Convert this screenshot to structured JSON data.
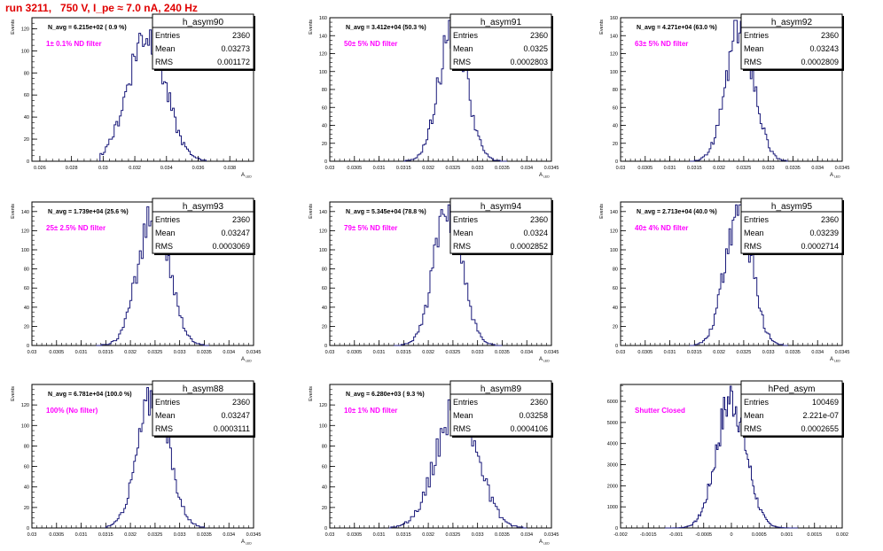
{
  "title": "run 3211,   750 V, I_pe ≈ 7.0 nA, 240 Hz",
  "colors": {
    "histogram": "#1a1a7a",
    "annotation": "#ff00ff",
    "title": "#e00000"
  },
  "stats_labels": {
    "entries": "Entries",
    "mean": "Mean",
    "rms": "RMS"
  },
  "chart_data": [
    {
      "type": "histogram",
      "name": "h_asym90",
      "ylabel": "Events",
      "xlabel": "A_LED",
      "navg": "N_avg = 6.215e+02 ( 0.9 %)",
      "annotation": "1± 0.1% ND filter",
      "stats": {
        "entries": "2360",
        "mean": "0.03273",
        "rms": "0.001172"
      },
      "xlim": [
        0.0255,
        0.0395
      ],
      "ylim": [
        0,
        130
      ],
      "xticks": [
        "0.026",
        "0.028",
        "0.03",
        "0.032",
        "0.034",
        "0.036",
        "0.038"
      ],
      "xtick_values": [
        0.026,
        0.028,
        0.03,
        0.032,
        0.034,
        0.036,
        0.038
      ],
      "yticks": [
        0,
        20,
        40,
        60,
        80,
        100,
        120
      ],
      "mean": 0.03273,
      "sigma": 0.001172,
      "peak": 118,
      "range": [
        0.0298,
        0.0365
      ],
      "nbins": 60,
      "seed": 90
    },
    {
      "type": "histogram",
      "name": "h_asym91",
      "ylabel": "Events",
      "xlabel": "A_LED",
      "navg": "N_avg = 3.412e+04 (50.3 %)",
      "annotation": "50± 5% ND filter",
      "stats": {
        "entries": "2360",
        "mean": "0.0325",
        "rms": "0.0002803"
      },
      "xlim": [
        0.03,
        0.0345
      ],
      "ylim": [
        0,
        160
      ],
      "xticks": [
        "0.03",
        "0.0305",
        "0.031",
        "0.0315",
        "0.032",
        "0.0325",
        "0.033",
        "0.0335",
        "0.034",
        "0.0345"
      ],
      "xtick_values": [
        0.03,
        0.0305,
        0.031,
        0.0315,
        0.032,
        0.0325,
        0.033,
        0.0335,
        0.034,
        0.0345
      ],
      "yticks": [
        0,
        20,
        40,
        60,
        80,
        100,
        120,
        140,
        160
      ],
      "mean": 0.0325,
      "sigma": 0.00028,
      "peak": 152,
      "range": [
        0.0315,
        0.0336
      ],
      "nbins": 60,
      "seed": 91
    },
    {
      "type": "histogram",
      "name": "h_asym92",
      "ylabel": "Events",
      "xlabel": "A_LED",
      "navg": "N_avg = 4.271e+04 (63.0 %)",
      "annotation": "63± 5% ND filter",
      "stats": {
        "entries": "2360",
        "mean": "0.03243",
        "rms": "0.0002809"
      },
      "xlim": [
        0.03,
        0.0345
      ],
      "ylim": [
        0,
        160
      ],
      "xticks": [
        "0.03",
        "0.0305",
        "0.031",
        "0.0315",
        "0.032",
        "0.0325",
        "0.033",
        "0.0335",
        "0.034",
        "0.0345"
      ],
      "xtick_values": [
        0.03,
        0.0305,
        0.031,
        0.0315,
        0.032,
        0.0325,
        0.033,
        0.0335,
        0.034,
        0.0345
      ],
      "yticks": [
        0,
        20,
        40,
        60,
        80,
        100,
        120,
        140,
        160
      ],
      "mean": 0.03243,
      "sigma": 0.00028,
      "peak": 150,
      "range": [
        0.0314,
        0.0334
      ],
      "nbins": 60,
      "seed": 92
    },
    {
      "type": "histogram",
      "name": "h_asym93",
      "ylabel": "Events",
      "xlabel": "A_LED",
      "navg": "N_avg = 1.739e+04 (25.6 %)",
      "annotation": "25± 2.5% ND filter",
      "stats": {
        "entries": "2360",
        "mean": "0.03247",
        "rms": "0.0003069"
      },
      "xlim": [
        0.03,
        0.0345
      ],
      "ylim": [
        0,
        150
      ],
      "xticks": [
        "0.03",
        "0.0305",
        "0.031",
        "0.0315",
        "0.032",
        "0.0325",
        "0.033",
        "0.0335",
        "0.034",
        "0.0345"
      ],
      "xtick_values": [
        0.03,
        0.0305,
        0.031,
        0.0315,
        0.032,
        0.0325,
        0.033,
        0.0335,
        0.034,
        0.0345
      ],
      "yticks": [
        0,
        20,
        40,
        60,
        80,
        100,
        120,
        140
      ],
      "mean": 0.03247,
      "sigma": 0.000307,
      "peak": 145,
      "range": [
        0.0313,
        0.0336
      ],
      "nbins": 60,
      "seed": 93
    },
    {
      "type": "histogram",
      "name": "h_asym94",
      "ylabel": "Events",
      "xlabel": "A_LED",
      "navg": "N_avg = 5.345e+04 (78.8 %)",
      "annotation": "79± 5% ND filter",
      "stats": {
        "entries": "2360",
        "mean": "0.0324",
        "rms": "0.0002852"
      },
      "xlim": [
        0.03,
        0.0345
      ],
      "ylim": [
        0,
        150
      ],
      "xticks": [
        "0.03",
        "0.0305",
        "0.031",
        "0.0315",
        "0.032",
        "0.0325",
        "0.033",
        "0.0335",
        "0.034",
        "0.0345"
      ],
      "xtick_values": [
        0.03,
        0.0305,
        0.031,
        0.0315,
        0.032,
        0.0325,
        0.033,
        0.0335,
        0.034,
        0.0345
      ],
      "yticks": [
        0,
        20,
        40,
        60,
        80,
        100,
        120,
        140
      ],
      "mean": 0.0324,
      "sigma": 0.000285,
      "peak": 142,
      "range": [
        0.0313,
        0.0335
      ],
      "nbins": 60,
      "seed": 94
    },
    {
      "type": "histogram",
      "name": "h_asym95",
      "ylabel": "Events",
      "xlabel": "A_LED",
      "navg": "N_avg = 2.713e+04 (40.0 %)",
      "annotation": "40± 4% ND filter",
      "stats": {
        "entries": "2360",
        "mean": "0.03239",
        "rms": "0.0002714"
      },
      "xlim": [
        0.03,
        0.0345
      ],
      "ylim": [
        0,
        150
      ],
      "xticks": [
        "0.03",
        "0.0305",
        "0.031",
        "0.0315",
        "0.032",
        "0.0325",
        "0.033",
        "0.0335",
        "0.034",
        "0.0345"
      ],
      "xtick_values": [
        0.03,
        0.0305,
        0.031,
        0.0315,
        0.032,
        0.0325,
        0.033,
        0.0335,
        0.034,
        0.0345
      ],
      "yticks": [
        0,
        20,
        40,
        60,
        80,
        100,
        120,
        140
      ],
      "mean": 0.03239,
      "sigma": 0.00027,
      "peak": 146,
      "range": [
        0.0314,
        0.0334
      ],
      "nbins": 60,
      "seed": 95
    },
    {
      "type": "histogram",
      "name": "h_asym88",
      "ylabel": "Events",
      "xlabel": "A_LED",
      "navg": "N_avg = 6.781e+04 (100.0 %)",
      "annotation": "100% (No filter)",
      "stats": {
        "entries": "2360",
        "mean": "0.03247",
        "rms": "0.0003111"
      },
      "xlim": [
        0.03,
        0.0345
      ],
      "ylim": [
        0,
        140
      ],
      "xticks": [
        "0.03",
        "0.0305",
        "0.031",
        "0.0315",
        "0.032",
        "0.0325",
        "0.033",
        "0.0335",
        "0.034",
        "0.0345"
      ],
      "xtick_values": [
        0.03,
        0.0305,
        0.031,
        0.0315,
        0.032,
        0.0325,
        0.033,
        0.0335,
        0.034,
        0.0345
      ],
      "yticks": [
        0,
        20,
        40,
        60,
        80,
        100,
        120
      ],
      "mean": 0.03247,
      "sigma": 0.00031,
      "peak": 133,
      "range": [
        0.0315,
        0.0335
      ],
      "nbins": 60,
      "seed": 88
    },
    {
      "type": "histogram",
      "name": "h_asym89",
      "ylabel": "Events",
      "xlabel": "A_LED",
      "navg": "N_avg = 6.280e+03 ( 9.3 %)",
      "annotation": "10± 1% ND filter",
      "stats": {
        "entries": "2360",
        "mean": "0.03258",
        "rms": "0.0004106"
      },
      "xlim": [
        0.03,
        0.0345
      ],
      "ylim": [
        0,
        140
      ],
      "xticks": [
        "0.03",
        "0.0305",
        "0.031",
        "0.0315",
        "0.032",
        "0.0325",
        "0.033",
        "0.0335",
        "0.034",
        "0.0345"
      ],
      "xtick_values": [
        0.03,
        0.0305,
        0.031,
        0.0315,
        0.032,
        0.0325,
        0.033,
        0.0335,
        0.034,
        0.0345
      ],
      "yticks": [
        0,
        20,
        40,
        60,
        80,
        100,
        120
      ],
      "mean": 0.03258,
      "sigma": 0.00041,
      "peak": 122,
      "range": [
        0.0312,
        0.034
      ],
      "nbins": 70,
      "seed": 89
    },
    {
      "type": "histogram",
      "name": "hPed_asym",
      "ylabel": "",
      "xlabel": "",
      "navg": "",
      "annotation": "Shutter Closed",
      "stats": {
        "entries": "100469",
        "mean": "2.221e-07",
        "rms": "0.0002655"
      },
      "xlim": [
        -0.002,
        0.002
      ],
      "ylim": [
        0,
        6800
      ],
      "xticks": [
        "-0.002",
        "-0.0015",
        "-0.001",
        "-0.0005",
        "0",
        "0.0005",
        "0.001",
        "0.0015",
        "0.002"
      ],
      "xtick_values": [
        -0.002,
        -0.0015,
        -0.001,
        -0.0005,
        0,
        0.0005,
        0.001,
        0.0015,
        0.002
      ],
      "yticks": [
        0,
        1000,
        2000,
        3000,
        4000,
        5000,
        6000
      ],
      "mean": 0.0,
      "sigma": 0.000266,
      "peak": 6150,
      "range": [
        -0.0012,
        0.0012
      ],
      "nbins": 100,
      "seed": 7
    }
  ]
}
